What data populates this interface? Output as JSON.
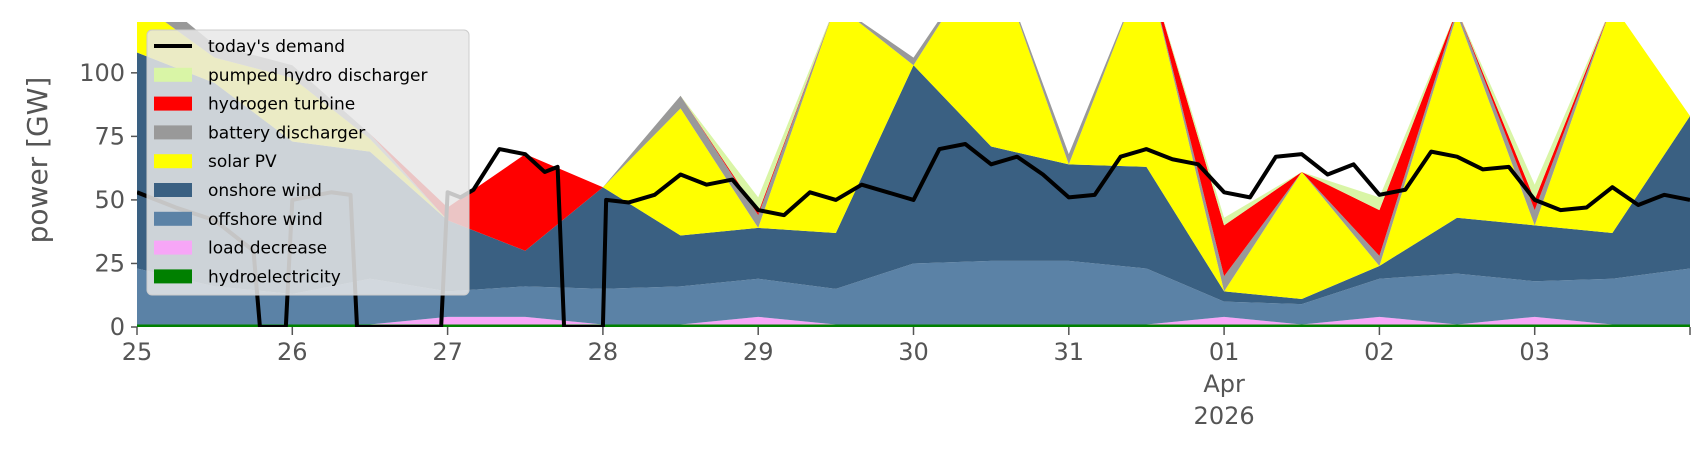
{
  "chart_data": {
    "type": "area",
    "ylabel": "power [GW]",
    "ylim": [
      0,
      120
    ],
    "yticks": [
      0,
      25,
      50,
      75,
      100
    ],
    "xlim": [
      0,
      240
    ],
    "xticks": [
      {
        "x": 0,
        "label": "25"
      },
      {
        "x": 24,
        "label": "26"
      },
      {
        "x": 48,
        "label": "27"
      },
      {
        "x": 72,
        "label": "28"
      },
      {
        "x": 96,
        "label": "29"
      },
      {
        "x": 120,
        "label": "30"
      },
      {
        "x": 144,
        "label": "31"
      },
      {
        "x": 168,
        "label": "01",
        "label2": "Apr",
        "label3": "2026"
      },
      {
        "x": 192,
        "label": "02"
      },
      {
        "x": 216,
        "label": "03"
      },
      {
        "x": 240,
        "label": ""
      }
    ],
    "legend_position": "top-left",
    "legend": [
      {
        "name": "today's demand",
        "color": "#000000",
        "kind": "line"
      },
      {
        "name": "pumped hydro discharger",
        "color": "#d9f5a6",
        "kind": "patch"
      },
      {
        "name": "hydrogen turbine",
        "color": "#ff0000",
        "kind": "patch"
      },
      {
        "name": "battery discharger",
        "color": "#999999",
        "kind": "patch"
      },
      {
        "name": "solar PV",
        "color": "#ffff00",
        "kind": "patch"
      },
      {
        "name": "onshore wind",
        "color": "#3a6082",
        "kind": "patch"
      },
      {
        "name": "offshore wind",
        "color": "#5b82a6",
        "kind": "patch"
      },
      {
        "name": "load decrease",
        "color": "#f7a6f7",
        "kind": "patch"
      },
      {
        "name": "hydroelectricity",
        "color": "#008000",
        "kind": "patch"
      }
    ],
    "x_hours": [
      0,
      12,
      24,
      36,
      48,
      60,
      72,
      84,
      96,
      108,
      120,
      132,
      144,
      156,
      168,
      180,
      192,
      204,
      216,
      228,
      240
    ],
    "series": [
      {
        "name": "hydroelectricity",
        "color": "#008000",
        "values": [
          1,
          1,
          1,
          1,
          1,
          1,
          1,
          1,
          1,
          1,
          1,
          1,
          1,
          1,
          1,
          1,
          1,
          1,
          1,
          1,
          1
        ]
      },
      {
        "name": "load decrease",
        "color": "#f7a6f7",
        "values": [
          0,
          0,
          0,
          0,
          3,
          3,
          0,
          0,
          3,
          0,
          0,
          0,
          0,
          0,
          3,
          0,
          3,
          0,
          3,
          0,
          0
        ]
      },
      {
        "name": "offshore wind",
        "color": "#5b82a6",
        "values": [
          22,
          15,
          12,
          18,
          10,
          12,
          14,
          15,
          15,
          14,
          24,
          25,
          25,
          22,
          6,
          8,
          15,
          20,
          14,
          18,
          22
        ]
      },
      {
        "name": "onshore wind",
        "color": "#3a6082",
        "values": [
          85,
          80,
          60,
          50,
          28,
          14,
          40,
          20,
          20,
          22,
          78,
          45,
          38,
          40,
          4,
          2,
          5,
          22,
          22,
          18,
          60
        ]
      },
      {
        "name": "solar PV",
        "color": "#ffff00",
        "values": [
          20,
          10,
          25,
          5,
          0,
          0,
          0,
          50,
          0,
          90,
          0,
          80,
          0,
          80,
          0,
          50,
          0,
          80,
          0,
          90,
          0
        ]
      },
      {
        "name": "battery discharger",
        "color": "#999999",
        "values": [
          8,
          5,
          5,
          2,
          0,
          0,
          0,
          5,
          5,
          0,
          3,
          0,
          4,
          0,
          6,
          0,
          4,
          2,
          6,
          0,
          0
        ]
      },
      {
        "name": "hydrogen turbine",
        "color": "#ff0000",
        "values": [
          0,
          0,
          0,
          0,
          5,
          38,
          0,
          0,
          1,
          0,
          0,
          0,
          0,
          0,
          20,
          0,
          18,
          0,
          4,
          0,
          0
        ]
      },
      {
        "name": "pumped hydro discharger",
        "color": "#d9f5a6",
        "values": [
          0,
          0,
          0,
          0,
          0,
          0,
          0,
          0,
          6,
          0,
          0,
          0,
          0,
          0,
          3,
          0,
          5,
          0,
          6,
          0,
          0
        ]
      }
    ],
    "demand": {
      "name": "today's demand",
      "color": "#000000",
      "points": [
        [
          0,
          53
        ],
        [
          6,
          47
        ],
        [
          12,
          42
        ],
        [
          18,
          30
        ],
        [
          19,
          0
        ],
        [
          23,
          0
        ],
        [
          24,
          50
        ],
        [
          30,
          53
        ],
        [
          33,
          52
        ],
        [
          34,
          0
        ],
        [
          47,
          0
        ],
        [
          48,
          53
        ],
        [
          50,
          51
        ],
        [
          52,
          54
        ],
        [
          56,
          70
        ],
        [
          60,
          68
        ],
        [
          63,
          61
        ],
        [
          65,
          63
        ],
        [
          66,
          0
        ],
        [
          72,
          0
        ],
        [
          72.5,
          50
        ],
        [
          76,
          49
        ],
        [
          80,
          52
        ],
        [
          84,
          60
        ],
        [
          88,
          56
        ],
        [
          92,
          58
        ],
        [
          96,
          46
        ],
        [
          100,
          44
        ],
        [
          104,
          53
        ],
        [
          108,
          50
        ],
        [
          112,
          56
        ],
        [
          116,
          53
        ],
        [
          120,
          50
        ],
        [
          124,
          70
        ],
        [
          128,
          72
        ],
        [
          132,
          64
        ],
        [
          136,
          67
        ],
        [
          140,
          60
        ],
        [
          144,
          51
        ],
        [
          148,
          52
        ],
        [
          152,
          67
        ],
        [
          156,
          70
        ],
        [
          160,
          66
        ],
        [
          164,
          64
        ],
        [
          168,
          53
        ],
        [
          172,
          51
        ],
        [
          176,
          67
        ],
        [
          180,
          68
        ],
        [
          184,
          60
        ],
        [
          188,
          64
        ],
        [
          192,
          52
        ],
        [
          196,
          54
        ],
        [
          200,
          69
        ],
        [
          204,
          67
        ],
        [
          208,
          62
        ],
        [
          212,
          63
        ],
        [
          216,
          50
        ],
        [
          220,
          46
        ],
        [
          224,
          47
        ],
        [
          228,
          55
        ],
        [
          232,
          48
        ],
        [
          236,
          52
        ],
        [
          240,
          50
        ]
      ]
    }
  }
}
